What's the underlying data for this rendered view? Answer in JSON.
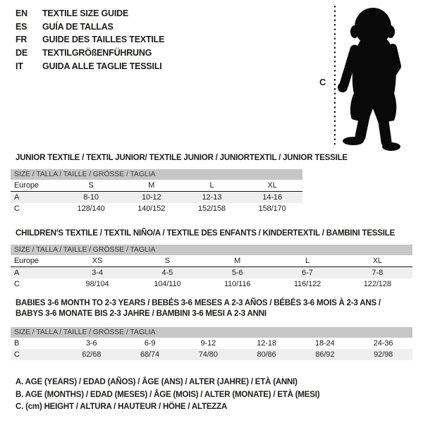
{
  "colors": {
    "header_bar": "#c6c6c6",
    "row_alt": "#efefef",
    "text": "#1d1d1b",
    "bar_text": "#3d3d3d"
  },
  "languages": [
    {
      "code": "EN",
      "title": "TEXTILE SIZE GUIDE"
    },
    {
      "code": "ES",
      "title": "GUÍA DE TALLAS"
    },
    {
      "code": "FR",
      "title": "GUIDE DES TAILLES TEXTILE"
    },
    {
      "code": "DE",
      "title": "TEXTILGRÖßENFÜHRUNG"
    },
    {
      "code": "IT",
      "title": "GUIDA ALLE TAGLIE TESSILI"
    }
  ],
  "figure": {
    "label": "C"
  },
  "sections": [
    {
      "title": "JUNIOR TEXTILE / TEXTIL JUNIOR/ TEXTILE JUNIOR / JUNIORTEXTIL / JUNIOR TESSILE",
      "size_header": "SIZE / TALLA / TAILLE / GRÖSSE / TAGLIA",
      "rows": [
        {
          "label": "Europe",
          "cells": [
            "S",
            "M",
            "L",
            "XL"
          ],
          "style": "head"
        },
        {
          "label": "A",
          "cells": [
            "8-10",
            "10-12",
            "12-13",
            "14-16"
          ],
          "style": "alt"
        },
        {
          "label": "C",
          "cells": [
            "128/140",
            "140/152",
            "152/158",
            "158/170"
          ],
          "style": "plain"
        }
      ]
    },
    {
      "title": "CHILDREN'S TEXTILE / TEXTIL NIÑO/A / TEXTILE DES ENFANTS / KINDERTEXTIL / BAMBINI TESSILE",
      "size_header": "SIZE / TALLA / TAILLE / GRÖSSE / TAGLIA",
      "rows": [
        {
          "label": "Europe",
          "cells": [
            "XS",
            "S",
            "M",
            "L",
            "XL"
          ],
          "style": "head"
        },
        {
          "label": "A",
          "cells": [
            "3-4",
            "4-5",
            "5-6",
            "6-7",
            "7-8"
          ],
          "style": "alt"
        },
        {
          "label": "C",
          "cells": [
            "98/104",
            "104/110",
            "110/116",
            "116/122",
            "122/128"
          ],
          "style": "plain"
        }
      ]
    },
    {
      "title": "BABIES 3-6 MONTH TO 2-3 YEARS / BEBÉS 3-6 MESES A 2-3 AÑOS / BÉBÉS 3-6 MOIS À 2-3 ANS /",
      "title2": "BABYS 3-6 MONATE BIS 2-3 JAHRE / BAMBINI 3-6 MESI A 2-3 ANNI",
      "size_header": "SIZE / TALLA / TAILLE / GRÖSSE / TAGLIA",
      "rows": [
        {
          "label": "B",
          "cells": [
            "3-6",
            "6-9",
            "9-12",
            "12-18",
            "18-24",
            "24-36"
          ],
          "style": "plain"
        },
        {
          "label": "C",
          "cells": [
            "62/68",
            "68/74",
            "74/80",
            "80/86",
            "86/92",
            "92/98"
          ],
          "style": "alt"
        }
      ]
    }
  ],
  "notes": [
    "A. AGE (YEARS) / EDAD (AÑOS) / ÂGE (ANS) / ALTER (JAHRE) / ETÀ (ANNI)",
    "B. AGE (MONTHS) / EDAD (MESES) / ÂGE (MOIS) / ALTER (MONATE) / ETÀ (MESI)",
    "C. (cm) HEIGHT / ALTURA / HAUTEUR / HÖHE / ALTEZZA"
  ]
}
